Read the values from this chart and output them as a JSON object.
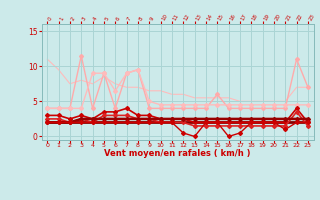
{
  "x": [
    0,
    1,
    2,
    3,
    4,
    5,
    6,
    7,
    8,
    9,
    10,
    11,
    12,
    13,
    14,
    15,
    16,
    17,
    18,
    19,
    20,
    21,
    22,
    23
  ],
  "background_color": "#cceaea",
  "grid_color": "#aad4d4",
  "xlabel": "Vent moyen/en rafales ( km/h )",
  "xlabel_color": "#cc0000",
  "tick_color": "#cc0000",
  "ylim": [
    -0.5,
    16
  ],
  "yticks": [
    0,
    5,
    10,
    15
  ],
  "lines": [
    {
      "y": [
        4.0,
        4.0,
        4.0,
        11.5,
        4.0,
        9.0,
        4.0,
        9.0,
        9.5,
        4.0,
        4.0,
        4.0,
        4.0,
        4.0,
        4.0,
        6.0,
        4.0,
        4.0,
        4.0,
        4.0,
        4.0,
        4.0,
        11.0,
        7.0
      ],
      "color": "#ffaaaa",
      "linewidth": 1.0,
      "marker": "D",
      "markersize": 2.0,
      "zorder": 2
    },
    {
      "y": [
        4.0,
        4.0,
        4.0,
        4.0,
        9.0,
        9.0,
        6.5,
        9.0,
        9.5,
        5.0,
        4.5,
        4.5,
        4.5,
        4.5,
        4.5,
        4.5,
        4.5,
        4.5,
        4.5,
        4.5,
        4.5,
        4.5,
        4.5,
        4.5
      ],
      "color": "#ffbbbb",
      "linewidth": 1.0,
      "marker": "D",
      "markersize": 2.0,
      "zorder": 2
    },
    {
      "y": [
        11.0,
        9.5,
        7.5,
        8.0,
        7.5,
        8.5,
        7.5,
        7.0,
        7.0,
        6.5,
        6.5,
        6.0,
        6.0,
        5.5,
        5.5,
        5.5,
        5.5,
        5.0,
        5.0,
        5.0,
        5.0,
        5.0,
        7.0,
        7.0
      ],
      "color": "#ffbbbb",
      "linewidth": 0.8,
      "marker": null,
      "markersize": 0,
      "zorder": 1
    },
    {
      "y": [
        3.0,
        3.0,
        2.5,
        3.0,
        2.5,
        3.5,
        3.5,
        4.0,
        3.0,
        3.0,
        2.5,
        2.5,
        2.5,
        2.0,
        2.0,
        2.0,
        2.0,
        2.0,
        2.0,
        2.0,
        2.0,
        2.0,
        4.0,
        2.0
      ],
      "color": "#cc0000",
      "linewidth": 1.2,
      "marker": "D",
      "markersize": 2.0,
      "zorder": 3
    },
    {
      "y": [
        2.5,
        2.5,
        2.0,
        2.5,
        2.0,
        3.0,
        3.0,
        3.0,
        2.5,
        2.5,
        2.0,
        2.0,
        2.0,
        1.5,
        1.5,
        1.5,
        1.5,
        1.5,
        1.5,
        1.5,
        1.5,
        1.5,
        3.5,
        1.5
      ],
      "color": "#dd2222",
      "linewidth": 1.2,
      "marker": "D",
      "markersize": 2.0,
      "zorder": 3
    },
    {
      "y": [
        2.0,
        2.0,
        2.0,
        2.0,
        2.0,
        2.0,
        2.0,
        2.0,
        2.0,
        2.0,
        2.0,
        2.0,
        0.5,
        0.0,
        2.0,
        2.0,
        0.0,
        0.5,
        2.0,
        2.0,
        2.0,
        1.0,
        2.0,
        2.0
      ],
      "color": "#cc0000",
      "linewidth": 1.0,
      "marker": "D",
      "markersize": 2.0,
      "zorder": 4
    },
    {
      "y": [
        2.0,
        2.0,
        2.0,
        2.5,
        2.5,
        2.5,
        2.5,
        2.5,
        2.5,
        2.5,
        2.5,
        2.5,
        2.5,
        2.5,
        2.5,
        2.5,
        2.5,
        2.5,
        2.5,
        2.5,
        2.5,
        2.5,
        2.5,
        2.5
      ],
      "color": "#990000",
      "linewidth": 1.8,
      "marker": "D",
      "markersize": 2.0,
      "zorder": 3
    },
    {
      "y": [
        2.0,
        2.0,
        2.0,
        2.0,
        2.0,
        2.0,
        2.0,
        2.0,
        2.0,
        2.0,
        2.0,
        2.0,
        2.0,
        2.0,
        2.0,
        2.0,
        2.0,
        2.0,
        2.0,
        2.0,
        2.0,
        2.0,
        2.0,
        2.0
      ],
      "color": "#880000",
      "linewidth": 2.0,
      "marker": null,
      "markersize": 0,
      "zorder": 2
    }
  ]
}
